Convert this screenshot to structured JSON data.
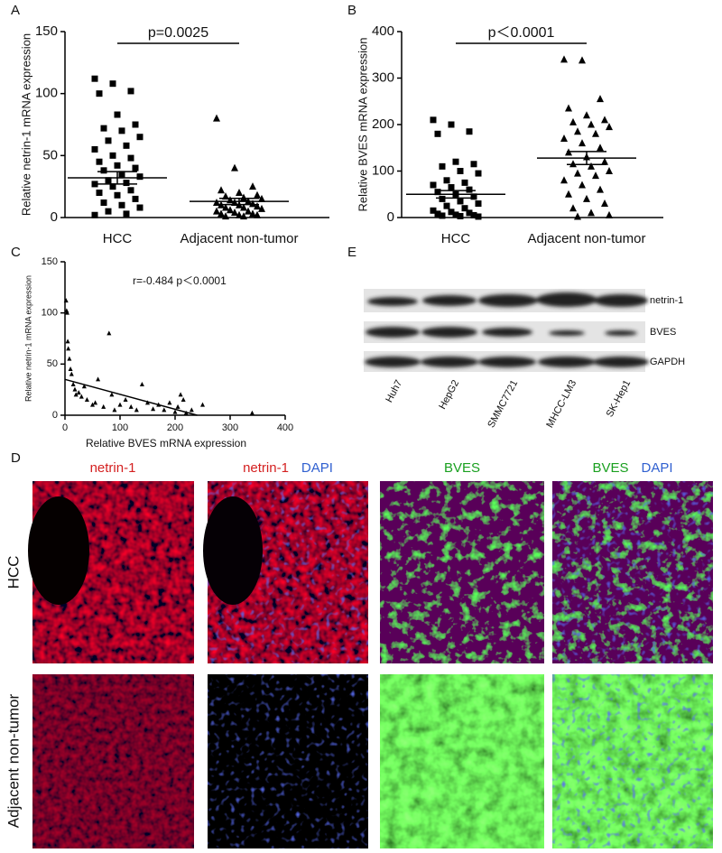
{
  "chart_data": [
    {
      "type": "strip",
      "ylabel": "Relative netrin-1 mRNA expression",
      "annotation": "p=0.0025",
      "categories": [
        "HCC",
        "Adjacent non-tumor"
      ],
      "ylim": [
        0,
        150
      ],
      "yticks": [
        0,
        50,
        100,
        150
      ],
      "groups": [
        {
          "marker": "square",
          "color": "#000000",
          "mean": 32,
          "sem": 5,
          "values": [
            112,
            108,
            102,
            100,
            83,
            75,
            72,
            70,
            65,
            62,
            58,
            55,
            50,
            48,
            45,
            42,
            40,
            38,
            35,
            33,
            30,
            28,
            27,
            25,
            22,
            20,
            18,
            15,
            12,
            10,
            8,
            5,
            3,
            2
          ]
        },
        {
          "marker": "triangle",
          "color": "#000000",
          "mean": 13,
          "sem": 2.5,
          "values": [
            80,
            40,
            25,
            22,
            20,
            18,
            17,
            16,
            15,
            14,
            13,
            12,
            12,
            11,
            10,
            10,
            9,
            8,
            8,
            7,
            6,
            5,
            5,
            4,
            3,
            3,
            2,
            2,
            1,
            1
          ]
        }
      ]
    },
    {
      "type": "strip",
      "ylabel": "Relative BVES  mRNA expression",
      "annotation": "p＜0.0001",
      "categories": [
        "HCC",
        "Adjacent non-tumor"
      ],
      "ylim": [
        0,
        400
      ],
      "yticks": [
        0,
        100,
        200,
        300,
        400
      ],
      "groups": [
        {
          "marker": "square",
          "color": "#000000",
          "mean": 50,
          "sem": 8,
          "values": [
            210,
            200,
            185,
            180,
            120,
            115,
            110,
            100,
            95,
            80,
            75,
            70,
            65,
            60,
            55,
            50,
            45,
            40,
            35,
            30,
            25,
            20,
            15,
            12,
            10,
            8,
            6,
            5,
            4,
            3,
            2
          ]
        },
        {
          "marker": "triangle",
          "color": "#000000",
          "mean": 128,
          "sem": 14,
          "values": [
            340,
            338,
            255,
            235,
            220,
            210,
            205,
            200,
            195,
            185,
            180,
            170,
            160,
            150,
            140,
            130,
            120,
            115,
            110,
            100,
            95,
            90,
            80,
            70,
            60,
            50,
            40,
            30,
            20,
            10,
            5,
            2
          ]
        }
      ]
    },
    {
      "type": "scatter",
      "xlabel": "Relative BVES  mRNA expression",
      "ylabel": "Relative netrin-1 mRNA expression",
      "annotation": "r=-0.484  p＜0.0001",
      "color": "#000000",
      "xlim": [
        0,
        400
      ],
      "xticks": [
        0,
        100,
        200,
        300,
        400
      ],
      "ylim": [
        0,
        150
      ],
      "yticks": [
        0,
        50,
        100,
        150
      ],
      "x": [
        2,
        3,
        4,
        5,
        6,
        8,
        10,
        12,
        15,
        18,
        20,
        25,
        30,
        35,
        40,
        50,
        55,
        60,
        70,
        80,
        85,
        90,
        100,
        110,
        120,
        130,
        140,
        150,
        160,
        170,
        180,
        190,
        200,
        205,
        210,
        215,
        220,
        230,
        250,
        340
      ],
      "y": [
        112,
        102,
        100,
        72,
        65,
        55,
        45,
        40,
        30,
        25,
        20,
        22,
        18,
        28,
        15,
        10,
        12,
        35,
        8,
        80,
        20,
        5,
        10,
        15,
        8,
        5,
        30,
        12,
        6,
        10,
        5,
        12,
        3,
        8,
        20,
        15,
        2,
        5,
        10,
        2
      ],
      "fit": {
        "x": [
          0,
          240
        ],
        "y": [
          35,
          0
        ]
      }
    }
  ],
  "panel_letters": [
    "A",
    "B",
    "C",
    "D",
    "E"
  ],
  "blot": {
    "rows": [
      "netrin-1",
      "BVES",
      "GAPDH"
    ],
    "lanes": [
      "Huh7",
      "HepG2",
      "SMMC7721",
      "MHCC-LM3",
      "SK-Hep1"
    ]
  },
  "micrographs": {
    "columns": [
      [
        "netrin-1"
      ],
      [
        "netrin-1",
        "DAPI"
      ],
      [
        "BVES"
      ],
      [
        "BVES",
        "DAPI"
      ]
    ],
    "rows": [
      "HCC",
      "Adjacent non-tumor"
    ]
  }
}
